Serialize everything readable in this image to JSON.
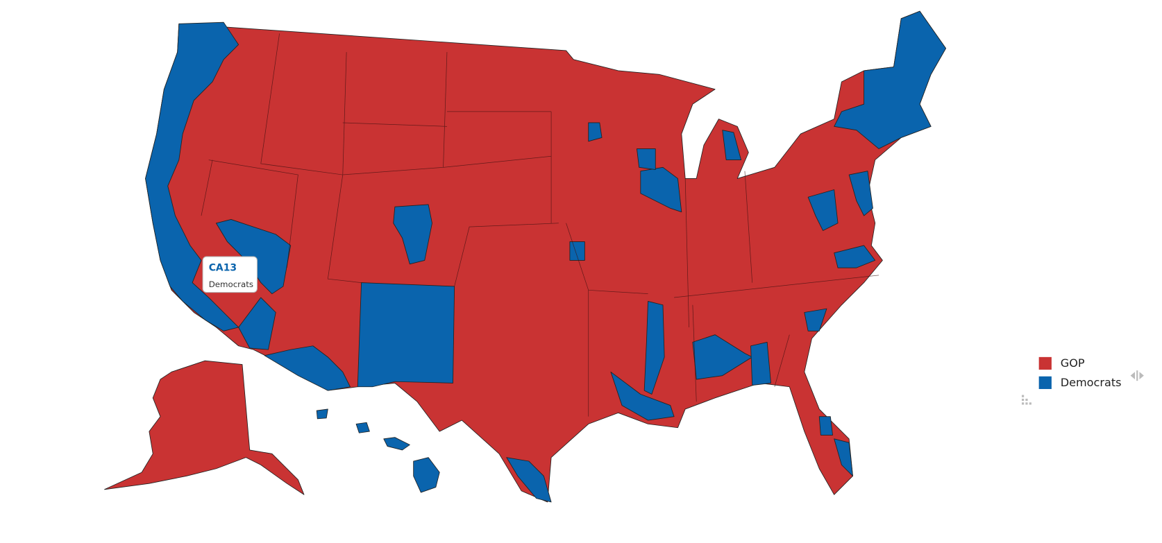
{
  "tooltip": {
    "district": "CA13",
    "party": "Democrats"
  },
  "legend": {
    "items": [
      {
        "label": "GOP",
        "color": "#c93333"
      },
      {
        "label": "Democrats",
        "color": "#0a64ad"
      }
    ]
  }
}
